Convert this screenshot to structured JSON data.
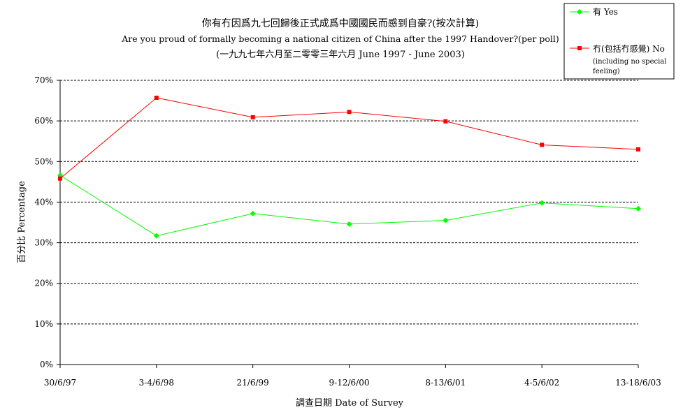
{
  "chart_data": {
    "type": "line",
    "title": "你有冇因爲九七回歸後正式成爲中國國民而感到自豪?(按次計算)",
    "subtitle": "Are you proud of formally becoming a national citizen of China after the 1997 Handover?(per poll)",
    "period": "(一九九七年六月至二零零三年六月 June 1997 - June 2003)",
    "xlabel": "調查日期 Date of Survey",
    "ylabel": "百分比 Percentage",
    "categories": [
      "30/6/97",
      "3-4/6/98",
      "21/6/99",
      "9-12/6/00",
      "8-13/6/01",
      "4-5/6/02",
      "13-18/6/03"
    ],
    "ylim": [
      0,
      70
    ],
    "yticks": [
      0,
      10,
      20,
      30,
      40,
      50,
      60,
      70
    ],
    "ytick_labels": [
      "0%",
      "10%",
      "20%",
      "30%",
      "40%",
      "50%",
      "60%",
      "70%"
    ],
    "grid": "horizontal dashed",
    "legend_position": "top-right",
    "series": [
      {
        "name": "有 Yes",
        "marker": "diamond",
        "color": "#00ff00",
        "values": [
          46.6,
          31.7,
          37.2,
          34.6,
          35.5,
          39.8,
          38.4
        ]
      },
      {
        "name": "冇(包括冇感覺) No",
        "name_note": "(including no special feeling)",
        "marker": "square",
        "color": "#ff0000",
        "values": [
          45.8,
          65.7,
          60.9,
          62.2,
          59.9,
          54.1,
          53.0
        ]
      }
    ]
  }
}
